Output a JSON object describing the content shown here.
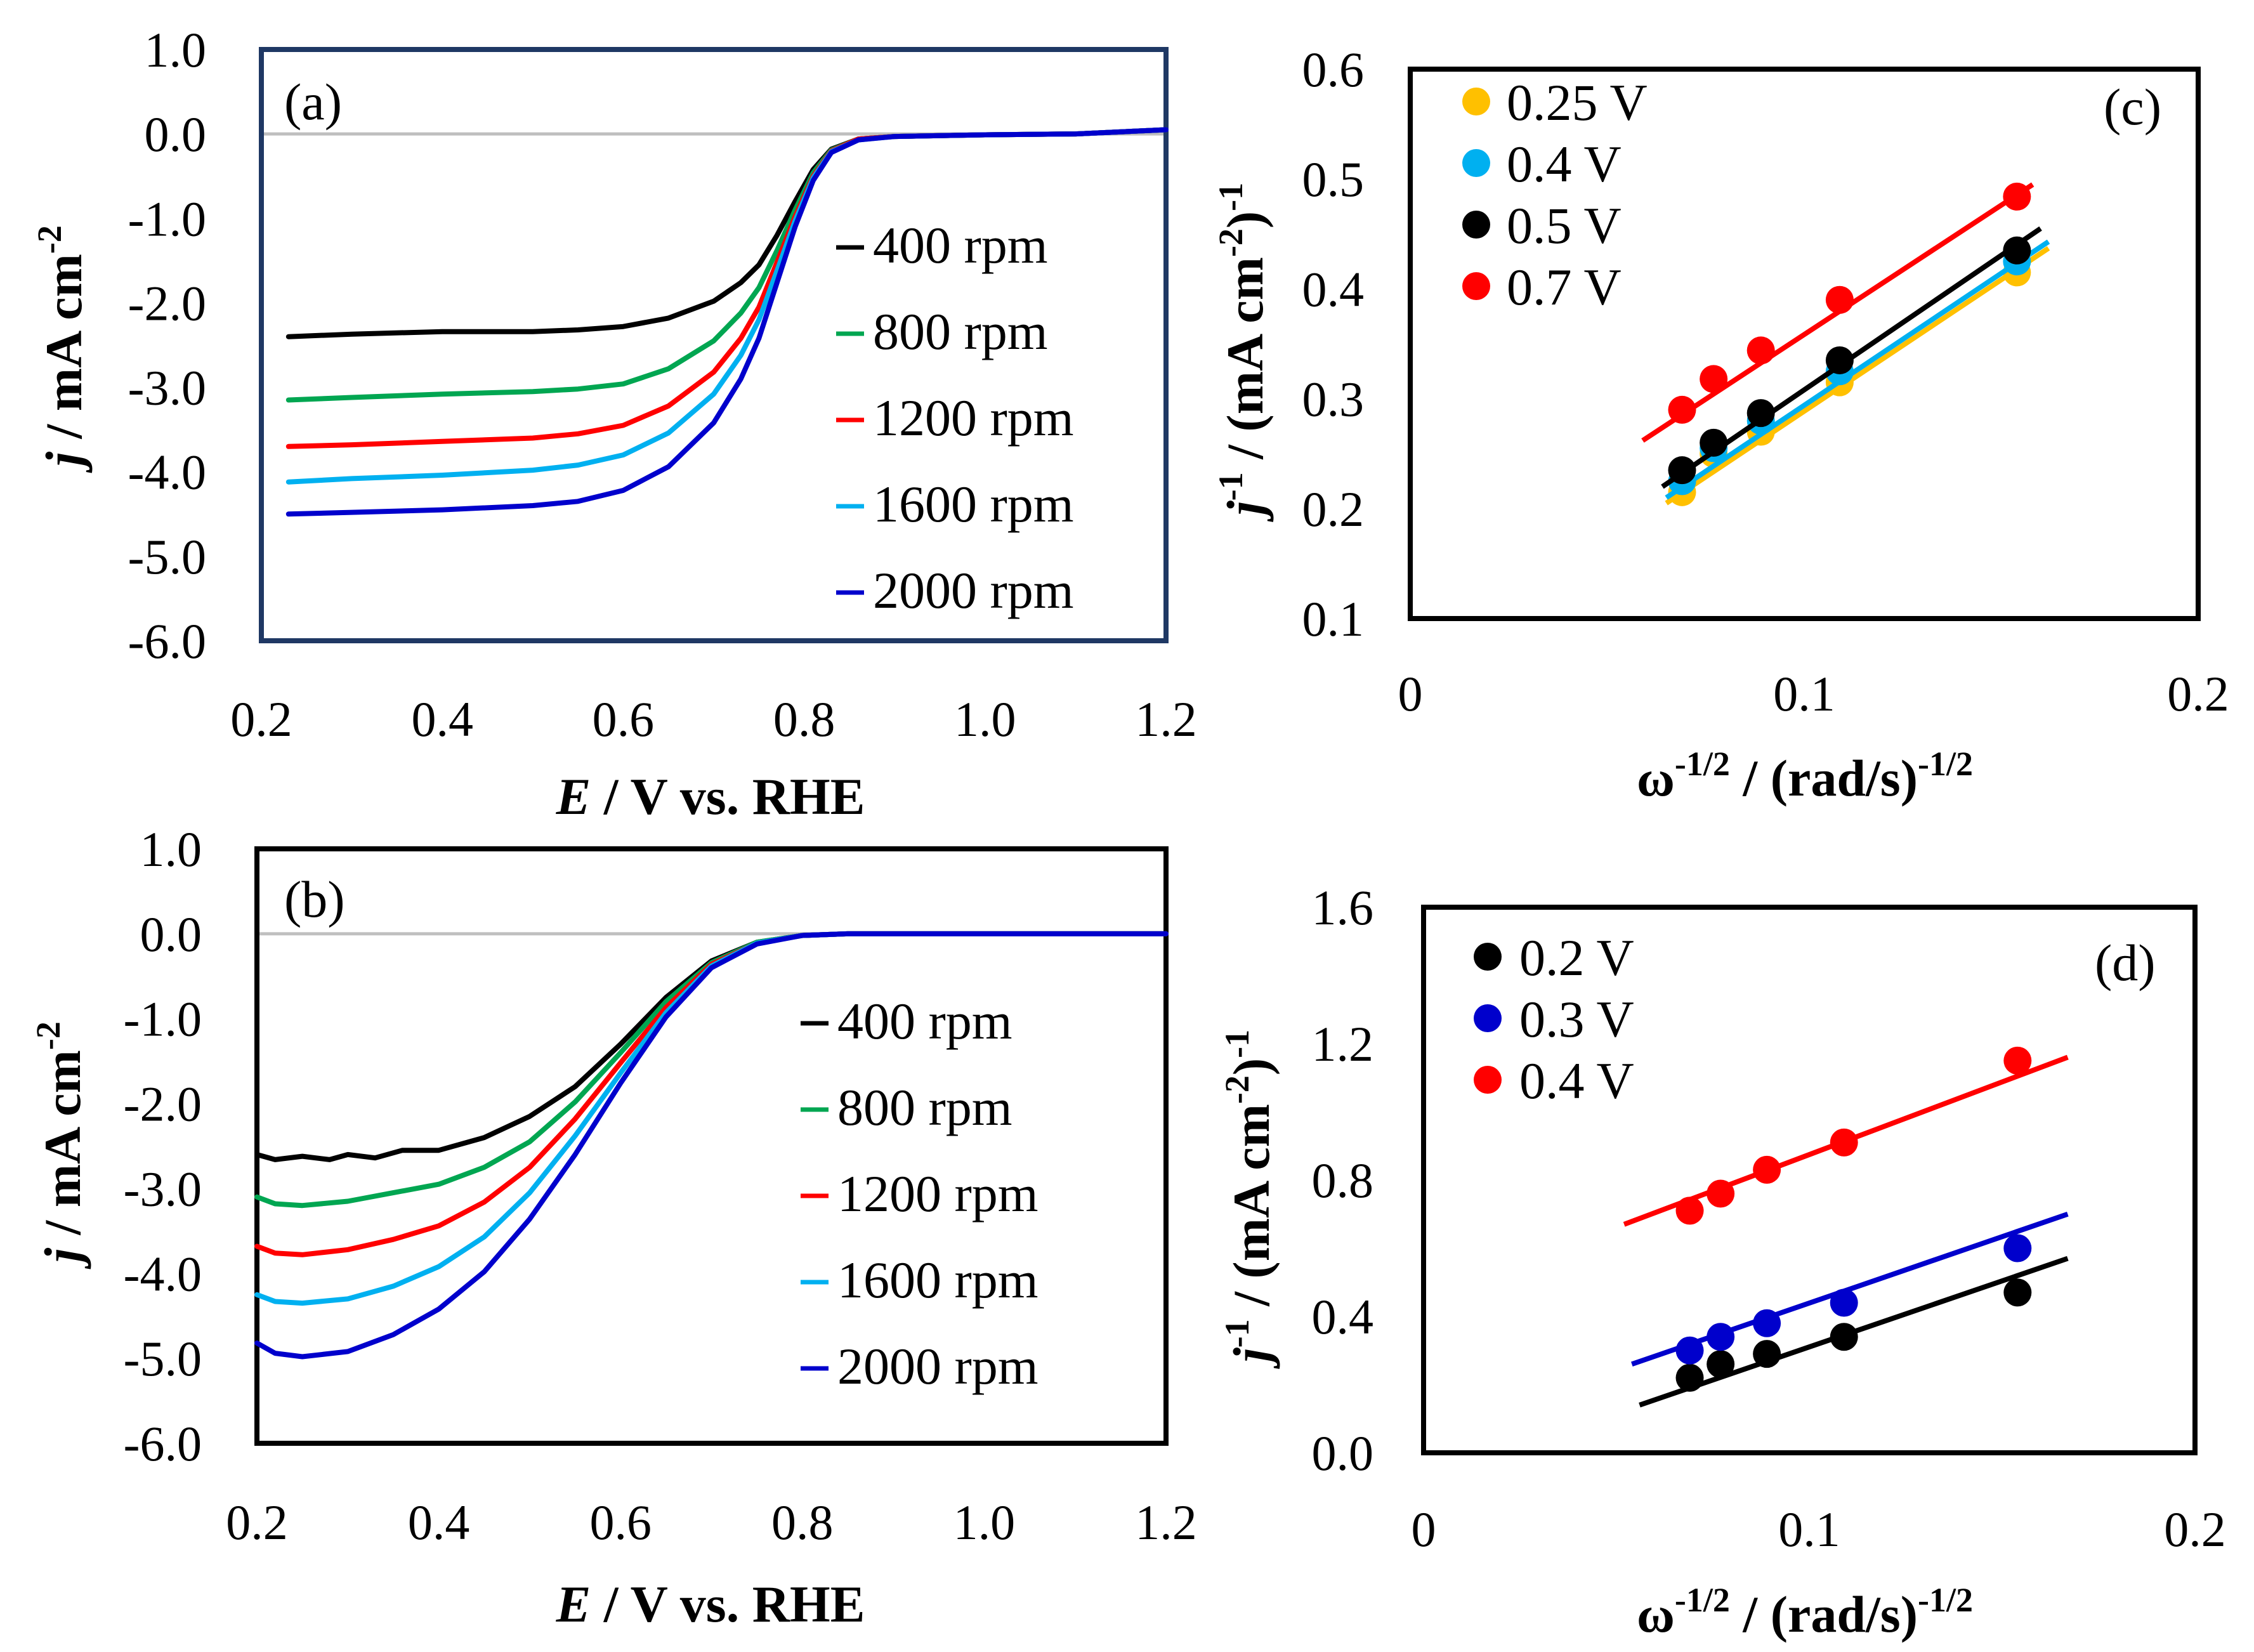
{
  "chart_data": [
    {
      "panel": "a",
      "type": "line",
      "label": "(a)",
      "xlabel": {
        "sym": "E",
        "rest": " / V vs. RHE"
      },
      "ylabel": {
        "sym": "j",
        "rest": " / mA cm",
        "sup": "-2"
      },
      "xlim": [
        0.2,
        1.2
      ],
      "ylim": [
        -6.0,
        1.0
      ],
      "xticks": [
        "0.2",
        "0.4",
        "0.6",
        "0.8",
        "1.0",
        "1.2"
      ],
      "yticks": [
        "1.0",
        "0.0",
        "-1.0",
        "-2.0",
        "-3.0",
        "-4.0",
        "-5.0",
        "-6.0"
      ],
      "zero_line": true,
      "series": [
        {
          "name": "400 rpm",
          "color": "#000000",
          "x": [
            0.23,
            0.3,
            0.4,
            0.5,
            0.55,
            0.6,
            0.65,
            0.7,
            0.73,
            0.75,
            0.77,
            0.79,
            0.81,
            0.83,
            0.86,
            0.9,
            1.0,
            1.1,
            1.2
          ],
          "y": [
            -2.4,
            -2.37,
            -2.34,
            -2.34,
            -2.32,
            -2.28,
            -2.18,
            -1.98,
            -1.76,
            -1.55,
            -1.2,
            -0.8,
            -0.42,
            -0.18,
            -0.06,
            -0.03,
            -0.01,
            0.0,
            0.05
          ]
        },
        {
          "name": "800 rpm",
          "color": "#00A651",
          "x": [
            0.23,
            0.3,
            0.4,
            0.5,
            0.55,
            0.6,
            0.65,
            0.7,
            0.73,
            0.75,
            0.77,
            0.79,
            0.81,
            0.83,
            0.86,
            0.9,
            1.0,
            1.1,
            1.2
          ],
          "y": [
            -3.15,
            -3.12,
            -3.08,
            -3.05,
            -3.02,
            -2.96,
            -2.78,
            -2.45,
            -2.12,
            -1.82,
            -1.38,
            -0.9,
            -0.46,
            -0.19,
            -0.06,
            -0.03,
            -0.01,
            0.0,
            0.05
          ]
        },
        {
          "name": "1200 rpm",
          "color": "#FF0000",
          "x": [
            0.23,
            0.3,
            0.4,
            0.5,
            0.55,
            0.6,
            0.65,
            0.7,
            0.73,
            0.75,
            0.77,
            0.79,
            0.81,
            0.83,
            0.86,
            0.9,
            1.0,
            1.1,
            1.2
          ],
          "y": [
            -3.7,
            -3.68,
            -3.64,
            -3.6,
            -3.55,
            -3.45,
            -3.22,
            -2.82,
            -2.42,
            -2.05,
            -1.52,
            -0.98,
            -0.5,
            -0.2,
            -0.06,
            -0.03,
            -0.01,
            0.0,
            0.05
          ]
        },
        {
          "name": "1600 rpm",
          "color": "#00B0F0",
          "x": [
            0.23,
            0.3,
            0.4,
            0.5,
            0.55,
            0.6,
            0.65,
            0.7,
            0.73,
            0.75,
            0.77,
            0.79,
            0.81,
            0.83,
            0.86,
            0.9,
            1.0,
            1.1,
            1.2
          ],
          "y": [
            -4.12,
            -4.08,
            -4.04,
            -3.98,
            -3.92,
            -3.8,
            -3.54,
            -3.08,
            -2.62,
            -2.2,
            -1.62,
            -1.03,
            -0.52,
            -0.21,
            -0.07,
            -0.03,
            -0.01,
            0.0,
            0.05
          ]
        },
        {
          "name": "2000 rpm",
          "color": "#0000CC",
          "x": [
            0.23,
            0.3,
            0.4,
            0.5,
            0.55,
            0.6,
            0.65,
            0.7,
            0.73,
            0.75,
            0.77,
            0.79,
            0.81,
            0.83,
            0.86,
            0.9,
            1.0,
            1.1,
            1.2
          ],
          "y": [
            -4.5,
            -4.48,
            -4.45,
            -4.4,
            -4.35,
            -4.22,
            -3.94,
            -3.42,
            -2.9,
            -2.42,
            -1.76,
            -1.1,
            -0.55,
            -0.22,
            -0.07,
            -0.03,
            -0.01,
            0.0,
            0.05
          ]
        }
      ]
    },
    {
      "panel": "b",
      "type": "line",
      "label": "(b)",
      "xlabel": {
        "sym": "E",
        "rest": " / V vs. RHE"
      },
      "ylabel": {
        "sym": "j",
        "rest": " / mA cm",
        "sup": "-2"
      },
      "xlim": [
        0.2,
        1.2
      ],
      "ylim": [
        -6.0,
        1.0
      ],
      "xticks": [
        "0.2",
        "0.4",
        "0.6",
        "0.8",
        "1.0",
        "1.2"
      ],
      "yticks": [
        "1.0",
        "0.0",
        "-1.0",
        "-2.0",
        "-3.0",
        "-4.0",
        "-5.0",
        "-6.0"
      ],
      "zero_line": true,
      "series": [
        {
          "name": "400 rpm",
          "color": "#000000",
          "x": [
            0.2,
            0.22,
            0.25,
            0.28,
            0.3,
            0.33,
            0.36,
            0.4,
            0.45,
            0.5,
            0.55,
            0.6,
            0.65,
            0.7,
            0.75,
            0.8,
            0.85,
            0.9,
            1.0,
            1.2
          ],
          "y": [
            -2.6,
            -2.66,
            -2.62,
            -2.66,
            -2.6,
            -2.64,
            -2.55,
            -2.55,
            -2.4,
            -2.15,
            -1.8,
            -1.3,
            -0.75,
            -0.32,
            -0.1,
            -0.02,
            0.0,
            0.0,
            0.0,
            0.0
          ]
        },
        {
          "name": "800 rpm",
          "color": "#00A651",
          "x": [
            0.2,
            0.22,
            0.25,
            0.3,
            0.35,
            0.4,
            0.45,
            0.5,
            0.55,
            0.6,
            0.65,
            0.7,
            0.75,
            0.8,
            0.85,
            0.9,
            1.0,
            1.2
          ],
          "y": [
            -3.1,
            -3.18,
            -3.2,
            -3.15,
            -3.05,
            -2.95,
            -2.75,
            -2.45,
            -1.98,
            -1.4,
            -0.8,
            -0.34,
            -0.1,
            -0.02,
            0.0,
            0.0,
            0.0,
            0.0
          ]
        },
        {
          "name": "1200 rpm",
          "color": "#FF0000",
          "x": [
            0.2,
            0.22,
            0.25,
            0.3,
            0.35,
            0.4,
            0.45,
            0.5,
            0.55,
            0.6,
            0.65,
            0.7,
            0.75,
            0.8,
            0.85,
            0.9,
            1.0,
            1.2
          ],
          "y": [
            -3.68,
            -3.76,
            -3.78,
            -3.72,
            -3.6,
            -3.44,
            -3.16,
            -2.75,
            -2.18,
            -1.52,
            -0.87,
            -0.36,
            -0.11,
            -0.02,
            0.0,
            0.0,
            0.0,
            0.0
          ]
        },
        {
          "name": "1600 rpm",
          "color": "#00B0F0",
          "x": [
            0.2,
            0.22,
            0.25,
            0.3,
            0.35,
            0.4,
            0.45,
            0.5,
            0.55,
            0.6,
            0.65,
            0.7,
            0.75,
            0.8,
            0.85,
            0.9,
            1.0,
            1.2
          ],
          "y": [
            -4.25,
            -4.33,
            -4.35,
            -4.3,
            -4.15,
            -3.92,
            -3.57,
            -3.05,
            -2.38,
            -1.64,
            -0.93,
            -0.38,
            -0.11,
            -0.02,
            0.0,
            0.0,
            0.0,
            0.0
          ]
        },
        {
          "name": "2000 rpm",
          "color": "#0000CC",
          "x": [
            0.2,
            0.22,
            0.25,
            0.3,
            0.35,
            0.4,
            0.45,
            0.5,
            0.55,
            0.6,
            0.65,
            0.7,
            0.75,
            0.8,
            0.85,
            0.9,
            1.0,
            1.2
          ],
          "y": [
            -4.82,
            -4.94,
            -4.98,
            -4.92,
            -4.72,
            -4.42,
            -3.98,
            -3.36,
            -2.6,
            -1.76,
            -0.98,
            -0.4,
            -0.12,
            -0.02,
            0.0,
            0.0,
            0.0,
            0.0
          ]
        }
      ]
    },
    {
      "panel": "c",
      "type": "scatter",
      "label": "(c)",
      "xlabel": {
        "pre": "ω",
        "sup1": "-1/2",
        "mid": " / (rad/s)",
        "sup2": "-1/2"
      },
      "ylabel": {
        "sym": "j",
        "sup0": "-1",
        "rest": " / (mA cm",
        "sup": "-2",
        "end": ")",
        "sup3": "-1"
      },
      "xlim": [
        0,
        0.2
      ],
      "ylim": [
        0.1,
        0.6
      ],
      "xticks": [
        "0",
        "0.1",
        "0.2"
      ],
      "yticks": [
        "0.6",
        "0.5",
        "0.4",
        "0.3",
        "0.2",
        "0.1"
      ],
      "series": [
        {
          "name": "0.25 V",
          "color": "#FFC000",
          "x": [
            0.069,
            0.077,
            0.089,
            0.109,
            0.154
          ],
          "y": [
            0.215,
            0.25,
            0.27,
            0.315,
            0.415
          ],
          "fit": {
            "x": [
              0.065,
              0.162
            ],
            "y": [
              0.205,
              0.437
            ]
          }
        },
        {
          "name": "0.4 V",
          "color": "#00B0F0",
          "x": [
            0.069,
            0.077,
            0.089,
            0.109,
            0.154
          ],
          "y": [
            0.225,
            0.255,
            0.28,
            0.325,
            0.425
          ],
          "fit": {
            "x": [
              0.065,
              0.162
            ],
            "y": [
              0.21,
              0.443
            ]
          }
        },
        {
          "name": "0.5 V",
          "color": "#000000",
          "x": [
            0.069,
            0.077,
            0.089,
            0.109,
            0.154
          ],
          "y": [
            0.235,
            0.26,
            0.287,
            0.335,
            0.435
          ],
          "fit": {
            "x": [
              0.064,
              0.16
            ],
            "y": [
              0.22,
              0.455
            ]
          }
        },
        {
          "name": "0.7 V",
          "color": "#FF0000",
          "x": [
            0.069,
            0.077,
            0.089,
            0.109,
            0.154
          ],
          "y": [
            0.29,
            0.318,
            0.344,
            0.39,
            0.484
          ],
          "fit": {
            "x": [
              0.059,
              0.158
            ],
            "y": [
              0.262,
              0.495
            ]
          }
        }
      ]
    },
    {
      "panel": "d",
      "type": "scatter",
      "label": "(d)",
      "xlabel": {
        "pre": "ω",
        "sup1": "-1/2",
        "mid": " / (rad/s)",
        "sup2": "-1/2"
      },
      "ylabel": {
        "sym": "j",
        "sup0": "-1",
        "rest": " / (mA cm",
        "sup": "-2",
        "end": ")",
        "sup3": "-1"
      },
      "xlim": [
        0,
        0.2
      ],
      "ylim": [
        0.0,
        1.6
      ],
      "xticks": [
        "0",
        "0.1",
        "0.2"
      ],
      "yticks": [
        "1.6",
        "1.2",
        "0.8",
        "0.4",
        "0.0"
      ],
      "series": [
        {
          "name": "0.2 V",
          "color": "#000000",
          "x": [
            0.069,
            0.077,
            0.089,
            0.109,
            0.154
          ],
          "y": [
            0.22,
            0.26,
            0.29,
            0.34,
            0.47
          ],
          "fit": {
            "x": [
              0.056,
              0.167
            ],
            "y": [
              0.14,
              0.57
            ]
          }
        },
        {
          "name": "0.3 V",
          "color": "#0000CC",
          "x": [
            0.069,
            0.077,
            0.089,
            0.109,
            0.154
          ],
          "y": [
            0.3,
            0.34,
            0.38,
            0.44,
            0.6
          ],
          "fit": {
            "x": [
              0.054,
              0.167
            ],
            "y": [
              0.26,
              0.7
            ]
          }
        },
        {
          "name": "0.4 V",
          "color": "#FF0000",
          "x": [
            0.069,
            0.077,
            0.089,
            0.109,
            0.154
          ],
          "y": [
            0.71,
            0.76,
            0.83,
            0.91,
            1.15
          ],
          "fit": {
            "x": [
              0.052,
              0.167
            ],
            "y": [
              0.67,
              1.16
            ]
          }
        }
      ]
    }
  ]
}
